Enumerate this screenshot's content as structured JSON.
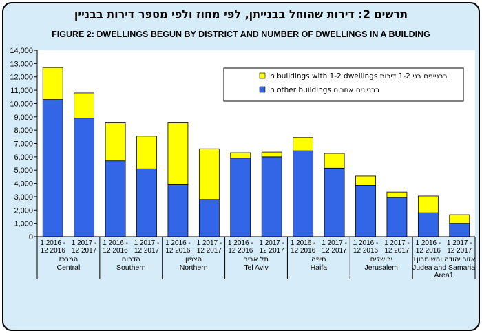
{
  "header": {
    "hebrew_title": "תרשים 2: דירות שהוחל בבנייתן, לפי מחוז ולפי מספר דירות בבניין"
  },
  "chart_data": {
    "type": "bar",
    "stacked": true,
    "title": "FIGURE 2: DWELLINGS BEGUN BY DISTRICT AND NUMBER OF DWELLINGS IN A BUILDING",
    "categories": [
      "1 2016 - 12 2016",
      "1 2017 - 12 2017",
      "1 2016 - 12 2016",
      "1 2017 - 12 2017",
      "1 2016 - 12 2016",
      "1 2017 - 12 2017",
      "1 2016 - 12 2016",
      "1 2017 - 12 2017",
      "1 2016 - 12 2016",
      "1 2017 - 12 2017",
      "1 2016 - 12 2016",
      "1 2017 - 12 2017",
      "1 2016 - 12 2016",
      "1 2017 - 12 2017"
    ],
    "groups": [
      {
        "hebrew": "המרכז",
        "english": "Central"
      },
      {
        "hebrew": "הדרום",
        "english": "Southern"
      },
      {
        "hebrew": "הצפון",
        "english": "Northern"
      },
      {
        "hebrew": "תל אביב",
        "english": "Tel Aviv"
      },
      {
        "hebrew": "חיפה",
        "english": "Haifa"
      },
      {
        "hebrew": "ירושלים",
        "english": "Jerusalem"
      },
      {
        "hebrew": "אזור יהודה והשומרון1",
        "english": "Judea and Samaria Area1"
      }
    ],
    "series": [
      {
        "name": "In other buildings  בבניינים אחרים",
        "color": "#3366e6",
        "values": [
          10300,
          8900,
          5700,
          5100,
          3900,
          2800,
          5900,
          6000,
          6450,
          5150,
          3850,
          2950,
          1800,
          1000
        ]
      },
      {
        "name": "In buildings  with 1-2 dwellings  בבניינים  בני  1-2 דירות",
        "color": "#ffff00",
        "values": [
          2400,
          1900,
          2850,
          2450,
          4650,
          3800,
          400,
          350,
          1000,
          1100,
          700,
          400,
          1250,
          650
        ]
      }
    ],
    "ylim": [
      0,
      14000
    ],
    "yticks": [
      "0",
      "1,000",
      "2,000",
      "3,000",
      "4,000",
      "5,000",
      "6,000",
      "7,000",
      "8,000",
      "9,000",
      "10,000",
      "11,000",
      "12,000",
      "13,000",
      "14,000"
    ],
    "grid": false,
    "legend": "top-right"
  }
}
